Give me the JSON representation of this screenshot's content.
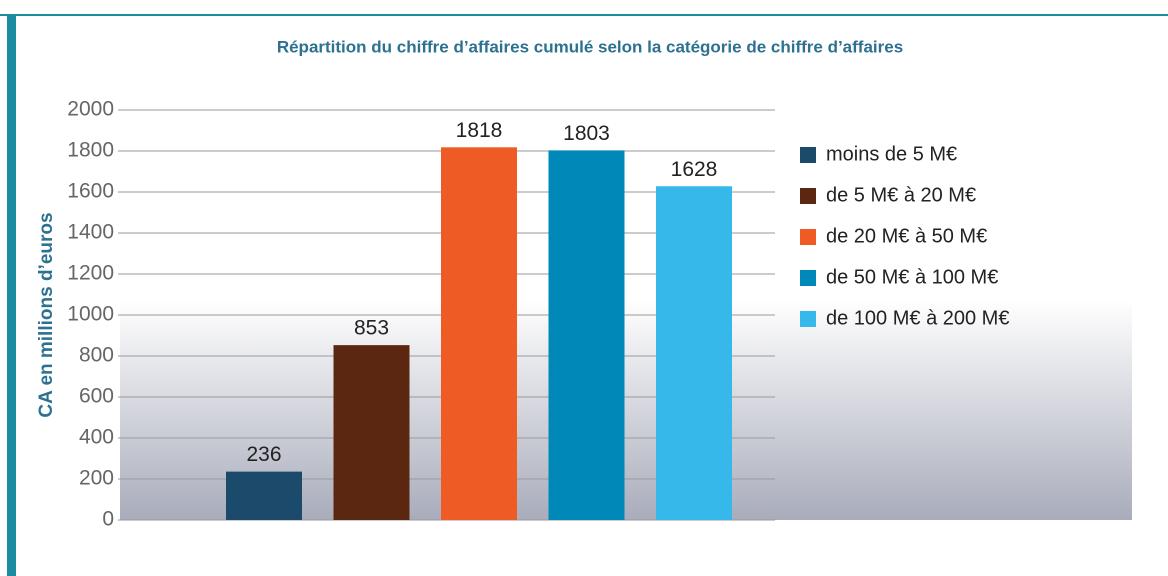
{
  "chart_data": {
    "type": "bar",
    "title": "Répartition du chiffre d’affaires cumulé selon la catégorie de chiffre d’affaires",
    "y_label": "CA en millions d’euros",
    "categories": [
      "moins de 5 M€",
      "de 5 M€ à 20 M€",
      "de 20 M€ à 50 M€",
      "de 50 M€ à 100 M€",
      "de 100 M€ à 200 M€"
    ],
    "values": [
      236,
      853,
      1818,
      1803,
      1628
    ],
    "colors": [
      "#1b4a6b",
      "#5c2710",
      "#ef5b25",
      "#0088b8",
      "#36b9ea"
    ],
    "ylim": [
      0,
      2000
    ],
    "yticks": [
      0,
      200,
      400,
      600,
      800,
      1000,
      1200,
      1400,
      1600,
      1800,
      2000
    ],
    "grid": true
  }
}
